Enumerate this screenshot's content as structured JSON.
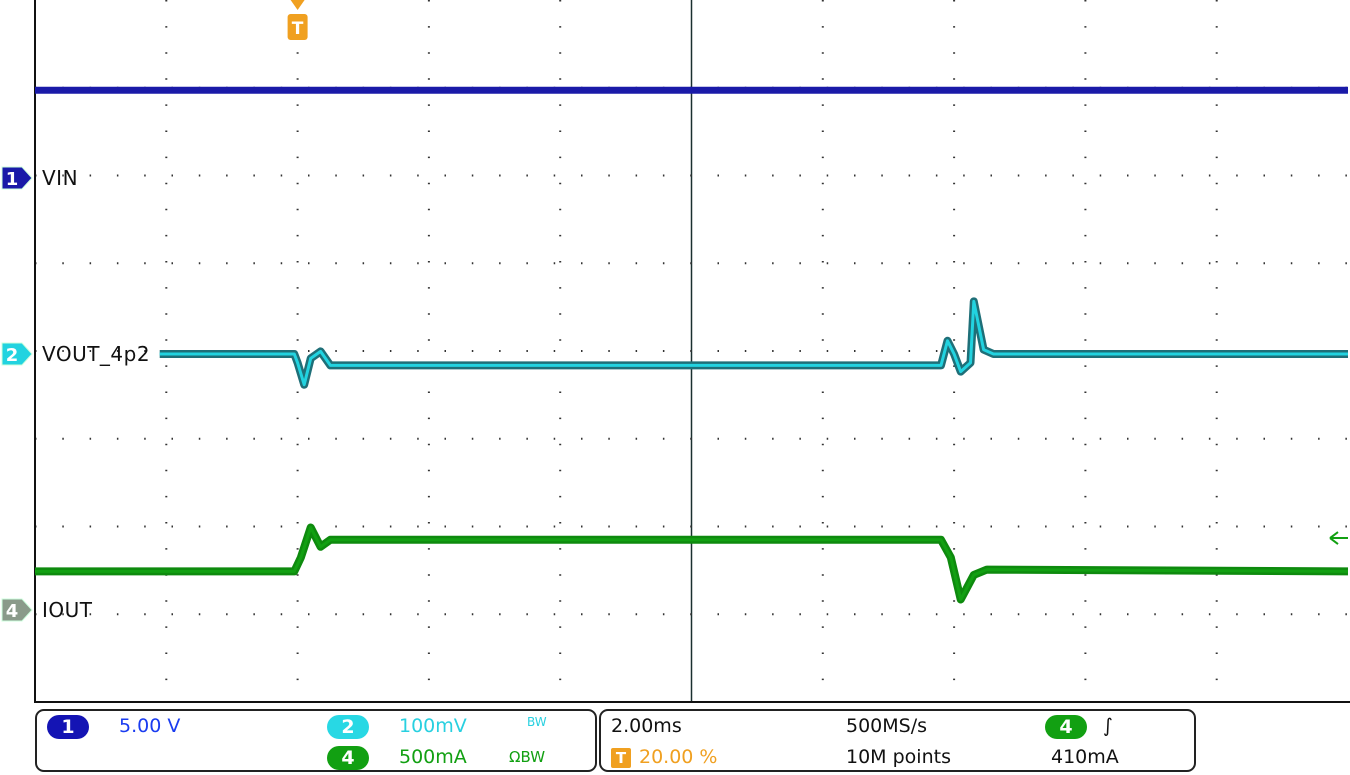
{
  "chart_data": {
    "type": "line",
    "title": "",
    "xlabel": "",
    "ylabel": "",
    "x_units": "ms",
    "xlim": [
      -4,
      16
    ],
    "grid": true,
    "divisions": {
      "horizontal": 10,
      "vertical": 8
    },
    "series": [
      {
        "name": "VIN",
        "channel": "1",
        "scale_per_div": 5.0,
        "units": "V",
        "color": "#1a1aa8",
        "x": [
          -4,
          16
        ],
        "y": [
          5.0,
          5.0
        ]
      },
      {
        "name": "VOUT_4p2",
        "channel": "2",
        "scale_per_div": 0.1,
        "units": "V (offset)",
        "color": "#22d3e0",
        "x": [
          -2.1,
          -0.05,
          0.0,
          0.1,
          0.2,
          0.35,
          0.5,
          9.8,
          9.9,
          10.0,
          10.1,
          10.25,
          10.3,
          10.45,
          10.6,
          16
        ],
        "y": [
          0.0,
          0.0,
          -0.01,
          -0.035,
          -0.005,
          0.003,
          -0.013,
          -0.013,
          0.015,
          0.0,
          -0.02,
          -0.01,
          0.06,
          0.005,
          0.0,
          0.0
        ]
      },
      {
        "name": "IOUT",
        "channel": "4",
        "scale_per_div": 0.5,
        "units": "A",
        "color": "#12a012",
        "x": [
          -4,
          -0.05,
          0.05,
          0.2,
          0.35,
          0.5,
          9.8,
          9.95,
          10.1,
          10.3,
          10.5,
          16
        ],
        "y": [
          0.22,
          0.22,
          0.3,
          0.47,
          0.36,
          0.4,
          0.4,
          0.3,
          0.06,
          0.2,
          0.23,
          0.22
        ]
      }
    ],
    "trigger": {
      "channel": "4",
      "slope": "rising",
      "level": "410mA",
      "position": "20.00 %"
    }
  },
  "labels": {
    "ch1": "VIN",
    "ch2": "VOUT_4p2",
    "ch4": "IOUT"
  },
  "markers": {
    "ch1": "1",
    "ch2": "2",
    "ch4": "4",
    "trigger": "T"
  },
  "status": {
    "ch1_badge": "1",
    "ch1_scale": "5.00 V",
    "ch2_badge": "2",
    "ch2_scale": "100mV",
    "ch2_bw": "BW",
    "ch4_badge": "4",
    "ch4_scale": "500mA",
    "ch4_bw": "ΩBW",
    "timebase": "2.00ms",
    "sample_rate": "500MS/s",
    "trigger_badge": "T",
    "trigger_position": "20.00 %",
    "record_length": "10M points",
    "trigger_source_badge": "4",
    "trigger_slope": "∫",
    "trigger_level": "410mA"
  },
  "colors": {
    "ch1": "#1a1aa8",
    "ch2": "#22d3e0",
    "ch4": "#12a012",
    "trigger": "#f0a020"
  }
}
